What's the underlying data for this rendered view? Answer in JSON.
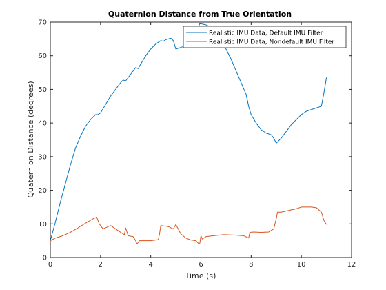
{
  "chart_data": {
    "type": "line",
    "title": "Quaternion Distance from True Orientation",
    "xlabel": "Time (s)",
    "ylabel": "Quaternion Distance (degrees)",
    "xlim": [
      0,
      12
    ],
    "ylim": [
      0,
      70
    ],
    "xticks": [
      "0",
      "2",
      "4",
      "6",
      "8",
      "10",
      "12"
    ],
    "yticks": [
      "0",
      "10",
      "20",
      "30",
      "40",
      "50",
      "60",
      "70"
    ],
    "grid": false,
    "legend_position": "top-right",
    "series": [
      {
        "name": "Realistic IMU Data, Default IMU Filter",
        "color": "#0072BD",
        "x": [
          0,
          0.2,
          0.4,
          0.6,
          0.8,
          1.0,
          1.2,
          1.4,
          1.6,
          1.8,
          1.9,
          2.0,
          2.2,
          2.4,
          2.6,
          2.8,
          2.9,
          3.0,
          3.2,
          3.4,
          3.5,
          3.6,
          3.8,
          4.0,
          4.2,
          4.4,
          4.5,
          4.6,
          4.8,
          4.9,
          5.0,
          5.2,
          5.4,
          5.6,
          5.8,
          5.95,
          6.0,
          6.2,
          6.4,
          6.6,
          6.8,
          7.0,
          7.2,
          7.4,
          7.6,
          7.8,
          7.9,
          8.0,
          8.2,
          8.4,
          8.6,
          8.8,
          8.9,
          9.0,
          9.2,
          9.4,
          9.6,
          9.8,
          10.0,
          10.2,
          10.4,
          10.6,
          10.8,
          10.9,
          11.0
        ],
        "y": [
          5,
          10.5,
          16.5,
          22,
          27.5,
          32.5,
          36,
          39,
          41,
          42.5,
          42.5,
          43,
          45.5,
          48,
          50,
          52,
          52.8,
          52.5,
          54.5,
          56.5,
          56.2,
          57.5,
          60,
          62,
          63.5,
          64.5,
          64.3,
          64.8,
          65.2,
          64.5,
          62,
          62.5,
          63,
          64,
          66.5,
          69.5,
          69.5,
          69.2,
          68.5,
          66.5,
          64,
          62,
          59,
          55.5,
          52,
          48.5,
          45,
          42.5,
          40,
          38,
          37,
          36.5,
          35.5,
          34,
          35.5,
          37.5,
          39.5,
          41,
          42.5,
          43.5,
          44,
          44.5,
          45,
          49,
          53.5
        ]
      },
      {
        "name": "Realistic IMU Data, Nondefault IMU Filter",
        "color": "#D95319",
        "x": [
          0,
          0.2,
          0.5,
          0.8,
          1.1,
          1.4,
          1.7,
          1.85,
          1.95,
          2.1,
          2.4,
          2.6,
          2.8,
          2.95,
          3.0,
          3.1,
          3.3,
          3.4,
          3.45,
          3.55,
          3.7,
          4.0,
          4.3,
          4.35,
          4.4,
          4.7,
          4.9,
          5.0,
          5.2,
          5.4,
          5.6,
          5.8,
          5.9,
          5.95,
          6.0,
          6.05,
          6.2,
          6.5,
          6.9,
          7.3,
          7.7,
          7.9,
          7.95,
          8.1,
          8.4,
          8.7,
          8.9,
          9.0,
          9.05,
          9.2,
          9.5,
          9.8,
          10.0,
          10.2,
          10.4,
          10.6,
          10.8,
          10.9,
          11.0
        ],
        "y": [
          5,
          5.8,
          6.5,
          7.5,
          8.8,
          10.2,
          11.5,
          12,
          10,
          8.5,
          9.5,
          8.5,
          7.5,
          6.8,
          8.8,
          6.5,
          6.2,
          5,
          4,
          5,
          5,
          5,
          5.3,
          7,
          9.5,
          9.2,
          8.5,
          9.8,
          7,
          5.8,
          5.2,
          5,
          4.2,
          4,
          6.5,
          5.5,
          6.2,
          6.5,
          6.8,
          6.7,
          6.5,
          5.8,
          7.5,
          7.6,
          7.5,
          7.6,
          8.5,
          11.5,
          13.5,
          13.5,
          14,
          14.5,
          15,
          15,
          15,
          14.8,
          13.5,
          11,
          9.8
        ]
      }
    ]
  }
}
